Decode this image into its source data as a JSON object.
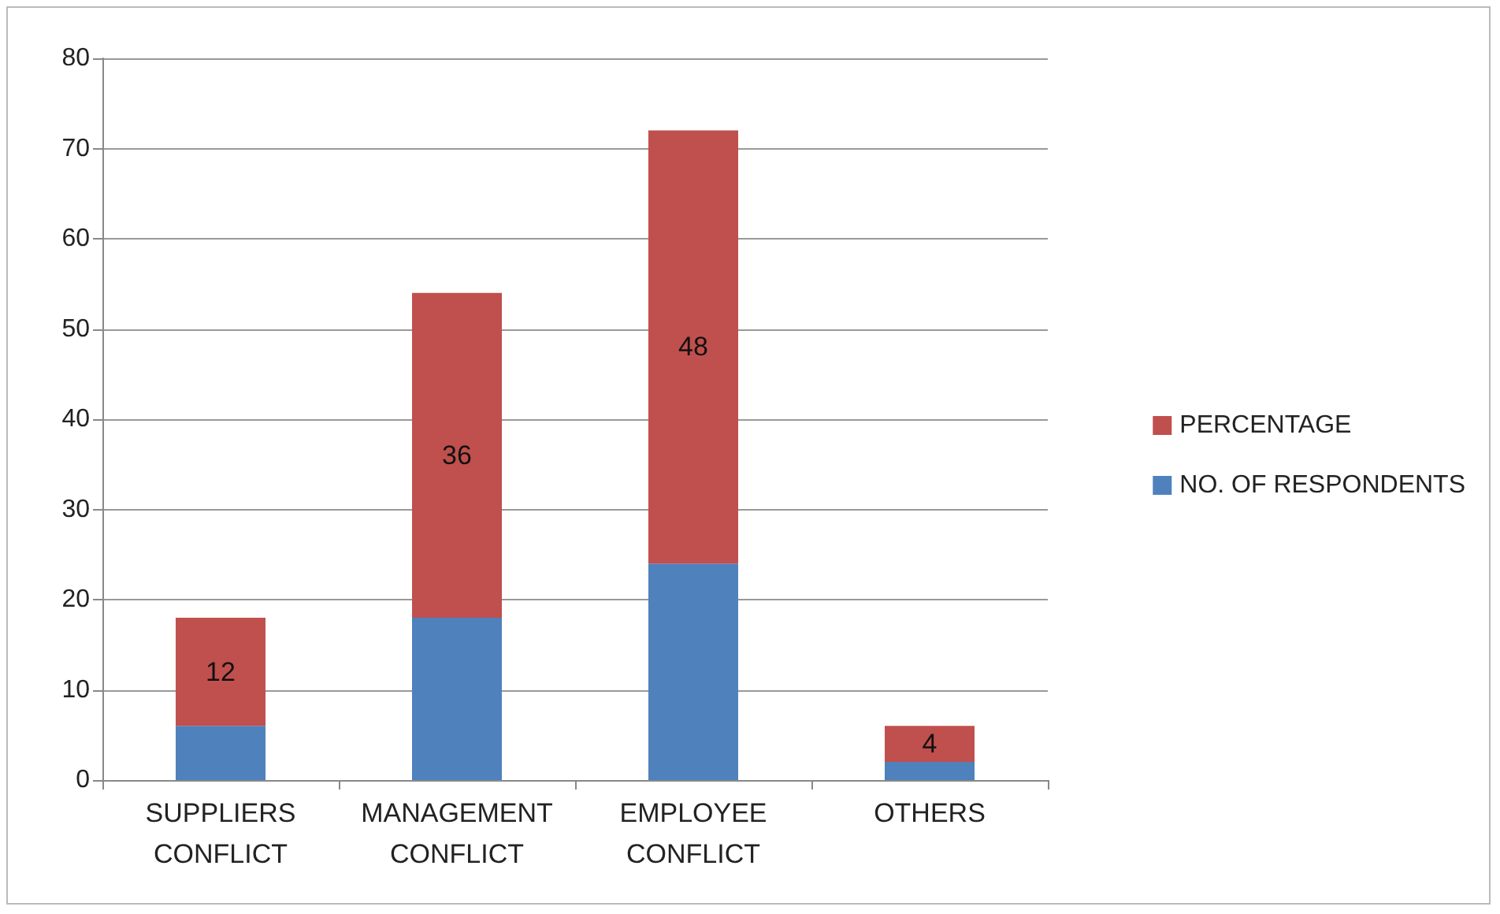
{
  "chart_data": {
    "type": "bar",
    "stacked": true,
    "categories": [
      "SUPPLIERS CONFLICT",
      "MANAGEMENT CONFLICT",
      "EMPLOYEE CONFLICT",
      "OTHERS"
    ],
    "series": [
      {
        "name": "NO. OF RESPONDENTS",
        "color": "#4f81bd",
        "values": [
          6,
          18,
          24,
          2
        ]
      },
      {
        "name": "PERCENTAGE",
        "color": "#c0504d",
        "values": [
          12,
          36,
          48,
          4
        ],
        "value_labels": [
          "12",
          "36",
          "48",
          "4"
        ]
      }
    ],
    "ylim": [
      0,
      80
    ],
    "yticks": [
      0,
      10,
      20,
      30,
      40,
      50,
      60,
      70,
      80
    ],
    "grid": "y",
    "legend": "right"
  }
}
